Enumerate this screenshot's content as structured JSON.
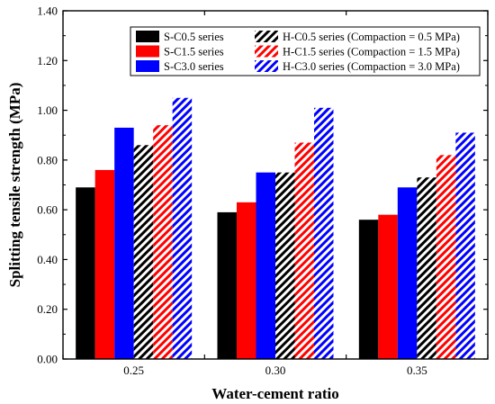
{
  "chart_data": {
    "type": "bar",
    "title": "",
    "xlabel": "Water-cement ratio",
    "ylabel": "Splitting tensile strength (MPa)",
    "ylim": [
      0,
      1.4
    ],
    "yticks": [
      "0.00",
      "0.20",
      "0.40",
      "0.60",
      "0.80",
      "1.00",
      "1.20",
      "1.40"
    ],
    "categories": [
      "0.25",
      "0.30",
      "0.35"
    ],
    "legend_position": "top-right",
    "grid": false,
    "series": [
      {
        "name": "S-C0.5 series",
        "color": "#000000",
        "pattern": "solid",
        "values": [
          0.69,
          0.59,
          0.56
        ]
      },
      {
        "name": "S-C1.5 series",
        "color": "#ff0000",
        "pattern": "solid",
        "values": [
          0.76,
          0.63,
          0.58
        ]
      },
      {
        "name": "S-C3.0 series",
        "color": "#0000ff",
        "pattern": "solid",
        "values": [
          0.93,
          0.75,
          0.69
        ]
      },
      {
        "name": "H-C0.5 series (Compaction = 0.5 MPa)",
        "color": "#000000",
        "pattern": "hatch",
        "values": [
          0.86,
          0.75,
          0.73
        ]
      },
      {
        "name": "H-C1.5 series (Compaction = 1.5 MPa)",
        "color": "#ff0000",
        "pattern": "hatch",
        "values": [
          0.94,
          0.87,
          0.82
        ]
      },
      {
        "name": "H-C3.0 series (Compaction = 3.0 MPa)",
        "color": "#0000ff",
        "pattern": "hatch",
        "values": [
          1.05,
          1.01,
          0.91
        ]
      }
    ]
  }
}
